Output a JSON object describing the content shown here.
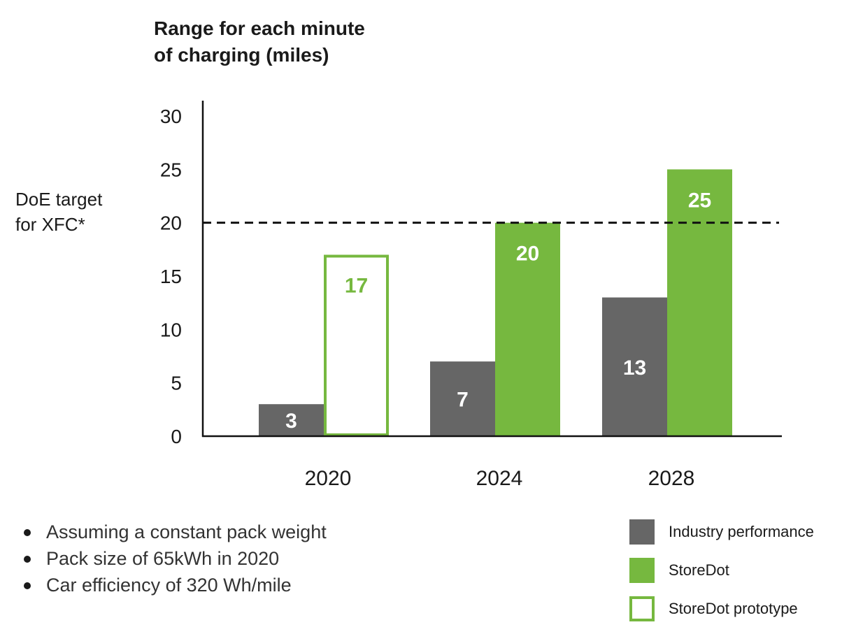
{
  "chart_data": {
    "type": "bar",
    "title_lines": [
      "Range for each minute",
      "of charging (miles)"
    ],
    "categories": [
      "2020",
      "2024",
      "2028"
    ],
    "series": [
      {
        "name": "Industry performance",
        "values": [
          3,
          7,
          13
        ],
        "color": "#666666",
        "style": "filled"
      },
      {
        "name": "StoreDot",
        "values": [
          null,
          20,
          25
        ],
        "color": "#76b83f",
        "style": "filled"
      },
      {
        "name": "StoreDot prototype",
        "values": [
          17,
          null,
          null
        ],
        "color": "#76b83f",
        "style": "outline"
      }
    ],
    "ylim": [
      0,
      30
    ],
    "yticks": [
      "0",
      "5",
      "10",
      "15",
      "20",
      "25",
      "30"
    ],
    "reference_line": {
      "value": 20,
      "label_lines": [
        "DoE target",
        "for XFC*"
      ],
      "style": "dashed"
    },
    "legend_position": "bottom-right",
    "grid": false
  },
  "notes": [
    "Assuming a constant pack weight",
    "Pack size of 65kWh in 2020",
    "Car efficiency of 320 Wh/mile"
  ]
}
